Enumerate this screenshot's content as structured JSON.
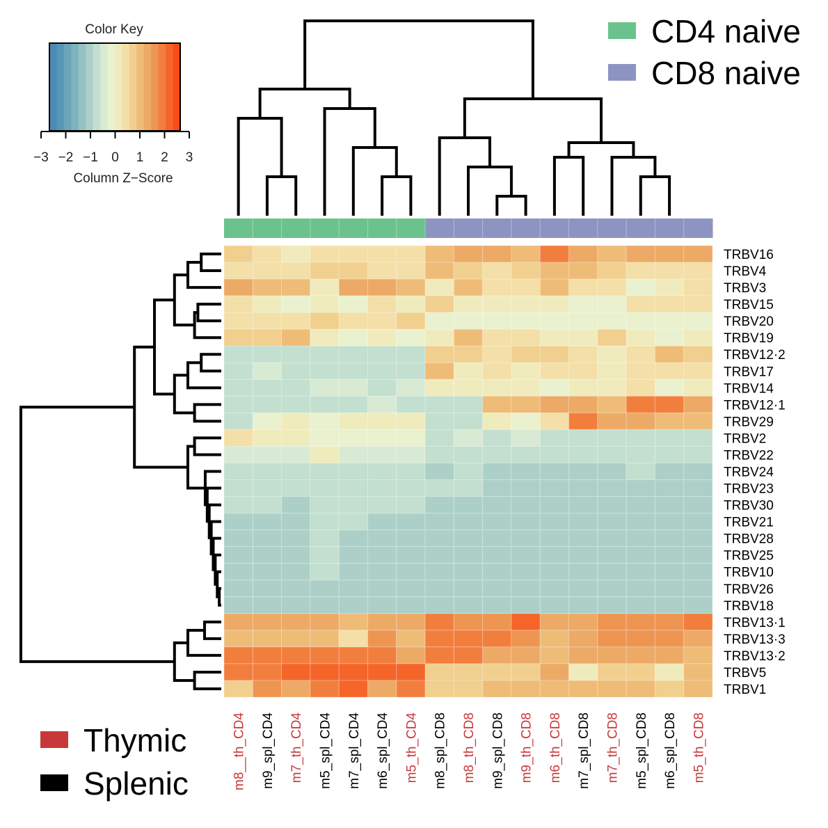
{
  "chart_data": {
    "type": "heatmap",
    "title": "",
    "color_key": {
      "title": "Color  Key",
      "xlabel": "Column Z−Score",
      "ticks": [
        "−3",
        "−2",
        "−1",
        "0",
        "1",
        "2",
        "3"
      ],
      "range": [
        -3,
        3
      ],
      "colors": [
        "#4a8ab4",
        "#5896b7",
        "#6aa5ba",
        "#7fb3bd",
        "#96c1c3",
        "#acd0c8",
        "#c3dfcf",
        "#d8ead3",
        "#e9f1cf",
        "#f0ebbd",
        "#f3dfa7",
        "#f1cf8e",
        "#efbc77",
        "#ecaa66",
        "#ef9552",
        "#f27e3e",
        "#f5652a",
        "#f84c1a"
      ]
    },
    "group_legend": [
      {
        "name": "CD4 naive",
        "color": "#6cc28d"
      },
      {
        "name": "CD8 naive",
        "color": "#8d94c2"
      }
    ],
    "tissue_legend": [
      {
        "name": "Thymic",
        "color": "#c8373a"
      },
      {
        "name": "Splenic",
        "color": "#000000"
      }
    ],
    "columns": [
      {
        "label": "m8__th_CD4",
        "tissue": "Thymic",
        "group": "CD4 naive"
      },
      {
        "label": "m9_spl_CD4",
        "tissue": "Splenic",
        "group": "CD4 naive"
      },
      {
        "label": "m7_th_CD4",
        "tissue": "Thymic",
        "group": "CD4 naive"
      },
      {
        "label": "m5_spl_CD4",
        "tissue": "Splenic",
        "group": "CD4 naive"
      },
      {
        "label": "m7_spl_CD4",
        "tissue": "Splenic",
        "group": "CD4 naive"
      },
      {
        "label": "m6_spl_CD4",
        "tissue": "Splenic",
        "group": "CD4 naive"
      },
      {
        "label": "m5_th_CD4",
        "tissue": "Thymic",
        "group": "CD4 naive"
      },
      {
        "label": "m8_spl_CD8",
        "tissue": "Splenic",
        "group": "CD8 naive"
      },
      {
        "label": "m8_th_CD8",
        "tissue": "Thymic",
        "group": "CD8 naive"
      },
      {
        "label": "m9_spl_CD8",
        "tissue": "Splenic",
        "group": "CD8 naive"
      },
      {
        "label": "m9_th_CD8",
        "tissue": "Thymic",
        "group": "CD8 naive"
      },
      {
        "label": "m6_th_CD8",
        "tissue": "Thymic",
        "group": "CD8 naive"
      },
      {
        "label": "m7_spl_CD8",
        "tissue": "Splenic",
        "group": "CD8 naive"
      },
      {
        "label": "m7_th_CD8",
        "tissue": "Thymic",
        "group": "CD8 naive"
      },
      {
        "label": "m5_spl_CD8",
        "tissue": "Splenic",
        "group": "CD8 naive"
      },
      {
        "label": "m6_spl_CD8",
        "tissue": "Splenic",
        "group": "CD8 naive"
      },
      {
        "label": "m5_th_CD8",
        "tissue": "Thymic",
        "group": "CD8 naive"
      }
    ],
    "rows": [
      "TRBV16",
      "TRBV4",
      "TRBV3",
      "TRBV15",
      "TRBV20",
      "TRBV19",
      "TRBV12·2",
      "TRBV17",
      "TRBV14",
      "TRBV12·1",
      "TRBV29",
      "TRBV2",
      "TRBV22",
      "TRBV24",
      "TRBV23",
      "TRBV30",
      "TRBV21",
      "TRBV28",
      "TRBV25",
      "TRBV10",
      "TRBV26",
      "TRBV18",
      "TRBV13·1",
      "TRBV13·3",
      "TRBV13·2",
      "TRBV5",
      "TRBV1"
    ],
    "values": [
      [
        0.7,
        0.4,
        0.1,
        0.4,
        0.4,
        0.6,
        0.4,
        1.1,
        1.5,
        1.4,
        1.3,
        2.0,
        1.5,
        1.3,
        1.5,
        1.5,
        1.5
      ],
      [
        0.4,
        0.4,
        0.4,
        0.7,
        0.7,
        0.5,
        0.4,
        1.1,
        0.8,
        0.4,
        0.8,
        1.2,
        1.1,
        0.9,
        0.4,
        0.4,
        0.4
      ],
      [
        1.6,
        1.2,
        1.2,
        0.1,
        1.6,
        1.6,
        1.2,
        0.3,
        1.1,
        0.6,
        0.6,
        1.1,
        0.6,
        0.6,
        -0.3,
        0.3,
        0.6
      ],
      [
        0.4,
        0.1,
        -0.2,
        0.1,
        -0.3,
        0.4,
        0.1,
        0.7,
        0.3,
        0.1,
        0.1,
        0.1,
        -0.2,
        -0.2,
        0.4,
        0.4,
        0.4
      ],
      [
        0.4,
        0.4,
        0.4,
        0.7,
        0.4,
        0.4,
        0.7,
        -0.3,
        -0.3,
        -0.3,
        -0.3,
        -0.3,
        -0.3,
        -0.3,
        -0.3,
        -0.3,
        -0.3
      ],
      [
        0.7,
        0.7,
        1.3,
        0.1,
        -0.3,
        0.1,
        -0.3,
        0.1,
        1.1,
        0.6,
        0.4,
        0.1,
        0.1,
        0.7,
        0.1,
        -0.3,
        0.1
      ],
      [
        -0.9,
        -0.9,
        -0.9,
        -0.9,
        -0.9,
        -0.9,
        -0.9,
        0.7,
        0.7,
        0.4,
        0.7,
        0.7,
        0.6,
        0.1,
        0.4,
        1.2,
        0.7
      ],
      [
        -0.9,
        -0.6,
        -0.9,
        -0.9,
        -0.9,
        -0.9,
        -0.9,
        1.3,
        0.1,
        0.4,
        0.1,
        0.4,
        0.6,
        0.1,
        0.4,
        0.4,
        0.4
      ],
      [
        -0.9,
        -0.9,
        -0.9,
        -0.6,
        -0.6,
        -0.9,
        -0.6,
        0.1,
        0.1,
        0.1,
        0.1,
        -0.3,
        0.1,
        0.1,
        0.4,
        -0.3,
        0.1
      ],
      [
        -0.9,
        -0.9,
        -0.9,
        -0.9,
        -0.9,
        -0.6,
        -0.9,
        -0.9,
        -0.9,
        1.3,
        1.3,
        1.6,
        1.6,
        1.3,
        2.1,
        2.1,
        1.6
      ],
      [
        -0.9,
        -0.3,
        0.1,
        -0.3,
        0.1,
        0.1,
        0.1,
        -0.9,
        -0.9,
        0.1,
        -0.3,
        0.4,
        2.0,
        1.6,
        1.6,
        1.3,
        1.3
      ],
      [
        0.4,
        0.1,
        0.1,
        -0.3,
        -0.3,
        -0.3,
        -0.3,
        -0.9,
        -0.6,
        -0.9,
        -0.6,
        -0.9,
        -0.9,
        -0.9,
        -0.9,
        -0.9,
        -0.9
      ],
      [
        -0.6,
        -0.6,
        -0.6,
        0.1,
        -0.6,
        -0.6,
        -0.6,
        -0.9,
        -0.9,
        -0.9,
        -0.9,
        -0.9,
        -0.9,
        -0.9,
        -0.9,
        -0.9,
        -0.9
      ],
      [
        -0.9,
        -0.9,
        -0.9,
        -0.9,
        -0.9,
        -0.9,
        -0.9,
        -1.3,
        -0.9,
        -1.3,
        -1.3,
        -1.3,
        -1.3,
        -1.3,
        -0.9,
        -1.3,
        -1.3
      ],
      [
        -0.9,
        -0.9,
        -0.9,
        -0.9,
        -0.9,
        -0.9,
        -0.9,
        -0.9,
        -0.9,
        -1.3,
        -1.3,
        -1.3,
        -1.3,
        -1.3,
        -1.3,
        -1.3,
        -1.3
      ],
      [
        -0.9,
        -0.9,
        -1.3,
        -0.9,
        -0.9,
        -0.9,
        -0.9,
        -1.3,
        -1.3,
        -1.3,
        -1.3,
        -1.3,
        -1.3,
        -1.3,
        -1.3,
        -1.3,
        -1.3
      ],
      [
        -1.3,
        -1.3,
        -1.3,
        -0.9,
        -0.9,
        -1.3,
        -1.3,
        -1.3,
        -1.3,
        -1.3,
        -1.3,
        -1.3,
        -1.3,
        -1.3,
        -1.3,
        -1.3,
        -1.3
      ],
      [
        -1.3,
        -1.3,
        -1.3,
        -0.9,
        -1.3,
        -1.3,
        -1.3,
        -1.3,
        -1.3,
        -1.3,
        -1.3,
        -1.3,
        -1.3,
        -1.3,
        -1.3,
        -1.3,
        -1.3
      ],
      [
        -1.3,
        -1.3,
        -1.3,
        -0.9,
        -1.3,
        -1.3,
        -1.3,
        -1.3,
        -1.3,
        -1.3,
        -1.3,
        -1.3,
        -1.3,
        -1.3,
        -1.3,
        -1.3,
        -1.3
      ],
      [
        -1.3,
        -1.3,
        -1.3,
        -0.9,
        -1.3,
        -1.3,
        -1.3,
        -1.3,
        -1.3,
        -1.3,
        -1.3,
        -1.3,
        -1.3,
        -1.3,
        -1.3,
        -1.3,
        -1.3
      ],
      [
        -1.3,
        -1.3,
        -1.3,
        -1.3,
        -1.3,
        -1.3,
        -1.3,
        -1.3,
        -1.3,
        -1.3,
        -1.3,
        -1.3,
        -1.3,
        -1.3,
        -1.3,
        -1.3,
        -1.3
      ],
      [
        -1.3,
        -1.3,
        -1.3,
        -1.3,
        -1.3,
        -1.3,
        -1.3,
        -1.3,
        -1.3,
        -1.3,
        -1.3,
        -1.3,
        -1.3,
        -1.3,
        -1.3,
        -1.3,
        -1.3
      ],
      [
        1.6,
        1.6,
        1.6,
        1.6,
        1.2,
        1.4,
        1.6,
        2.3,
        1.9,
        1.9,
        2.5,
        1.6,
        1.6,
        1.9,
        1.9,
        1.9,
        2.3
      ],
      [
        1.3,
        1.3,
        1.3,
        1.3,
        0.5,
        1.9,
        1.0,
        2.1,
        2.1,
        2.1,
        1.9,
        1.1,
        1.4,
        1.9,
        1.9,
        1.9,
        1.4
      ],
      [
        2.1,
        2.1,
        2.1,
        2.1,
        2.1,
        2.1,
        1.6,
        2.1,
        2.1,
        1.6,
        1.6,
        1.3,
        1.4,
        1.4,
        1.4,
        1.4,
        1.3
      ],
      [
        2.1,
        2.1,
        2.4,
        2.4,
        2.4,
        2.5,
        2.4,
        0.7,
        0.7,
        0.7,
        0.7,
        1.4,
        0.3,
        0.7,
        0.7,
        0.3,
        1.1
      ],
      [
        0.9,
        1.9,
        1.4,
        2.1,
        2.4,
        1.6,
        2.1,
        0.7,
        0.7,
        1.0,
        1.0,
        1.0,
        1.0,
        1.0,
        1.0,
        0.7,
        1.3
      ]
    ],
    "column_dendrogram": {
      "merges": [
        [
          1,
          2
        ],
        [
          5,
          6
        ],
        [
          4,
          "m2"
        ],
        [
          0,
          "m1"
        ],
        [
          3,
          "m3"
        ],
        [
          "m4",
          "m5"
        ],
        [
          9,
          10
        ],
        [
          8,
          "m7"
        ],
        [
          7,
          "m8"
        ],
        [
          14,
          15
        ],
        [
          13,
          "m10"
        ],
        [
          11,
          12
        ],
        [
          "m12",
          "m11"
        ],
        [
          "m9",
          "m13"
        ],
        [
          "m6",
          "m14"
        ]
      ]
    },
    "row_dendrogram": {
      "merges": [
        [
          0,
          1
        ],
        [
          2,
          "m1"
        ],
        [
          3,
          4
        ],
        [
          5,
          "m3"
        ],
        [
          "m2",
          "m4"
        ],
        [
          6,
          7
        ],
        [
          8,
          "m6"
        ],
        [
          9,
          10
        ],
        [
          "m7",
          "m8"
        ],
        [
          "m5",
          "m9"
        ],
        [
          11,
          12
        ],
        [
          20,
          21
        ],
        [
          19,
          "m12"
        ],
        [
          18,
          "m13"
        ],
        [
          17,
          "m14"
        ],
        [
          16,
          "m15"
        ],
        [
          15,
          "m16"
        ],
        [
          14,
          "m17"
        ],
        [
          13,
          "m18"
        ],
        [
          "m11",
          "m19"
        ],
        [
          "m10",
          "m20"
        ],
        [
          22,
          23
        ],
        [
          24,
          "m22"
        ],
        [
          25,
          26
        ],
        [
          "m23",
          "m24"
        ],
        [
          "m21",
          "m25"
        ]
      ]
    }
  }
}
